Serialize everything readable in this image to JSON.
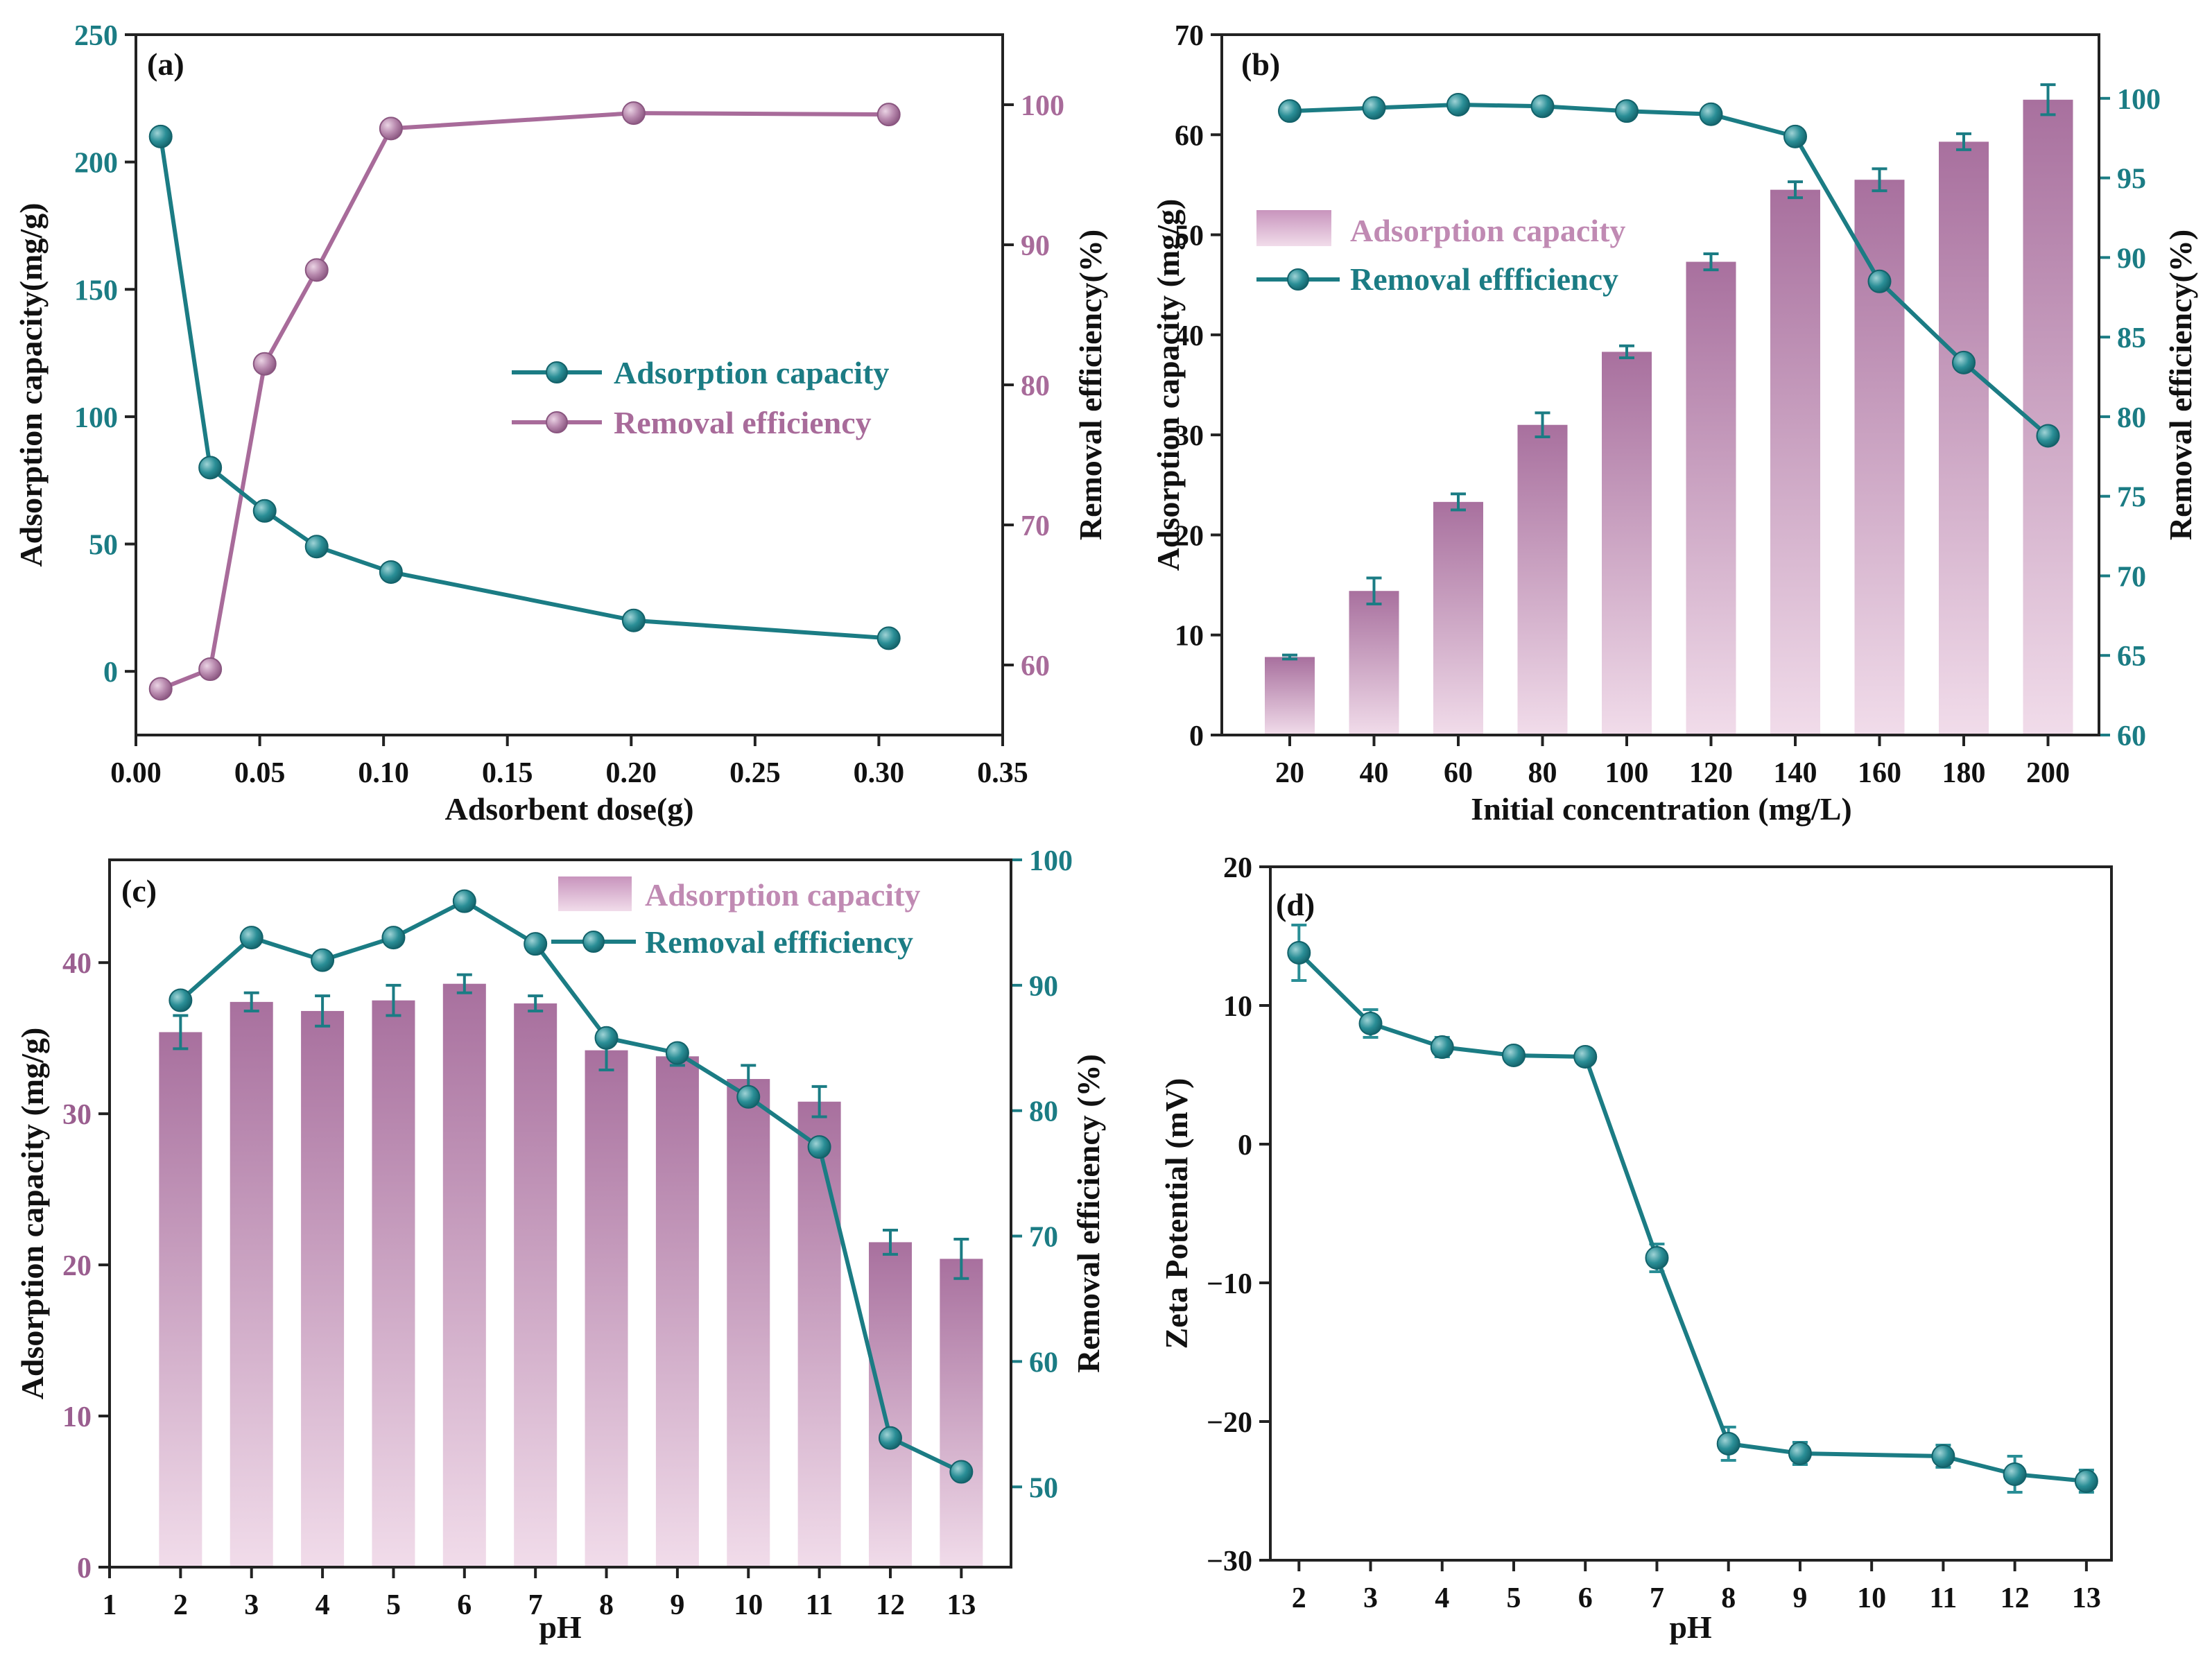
{
  "colors": {
    "teal": "#1b7c84",
    "teal_marker": "#2a8e96",
    "purple": "#a86b9a",
    "purple_marker": "#b687ac",
    "bar_top": "#a8709e",
    "bar_bottom": "#f1dcea",
    "axis": "#222222"
  },
  "chart_data": [
    {
      "panel": "a",
      "panel_label": "(a)",
      "type": "line",
      "xlabel": "Adsorbent dose(g)",
      "ylabel_left": "Adsorption capacity(mg/g)",
      "ylabel_right": "Removal efficiency(%)",
      "xlim": [
        0.0,
        0.35
      ],
      "xticks": [
        0.0,
        0.05,
        0.1,
        0.15,
        0.2,
        0.25,
        0.3,
        0.35
      ],
      "xtick_labels": [
        "0.00",
        "0.05",
        "0.10",
        "0.15",
        "0.20",
        "0.25",
        "0.30",
        "0.35"
      ],
      "ylim_left": [
        -25,
        250
      ],
      "yticks_left": [
        0,
        50,
        100,
        150,
        200,
        250
      ],
      "ytick_labels_left": [
        "0",
        "50",
        "100",
        "150",
        "200",
        "250"
      ],
      "ylim_right": [
        55,
        105
      ],
      "yticks_right": [
        60,
        70,
        80,
        90,
        100
      ],
      "ytick_labels_right": [
        "60",
        "70",
        "80",
        "90",
        "100"
      ],
      "legend_position": "center-right",
      "series": [
        {
          "name": "Adsorption capacity",
          "axis": "left",
          "color": "#1b7c84",
          "x": [
            0.01,
            0.03,
            0.052,
            0.073,
            0.103,
            0.201,
            0.304
          ],
          "values": [
            210,
            80,
            63,
            49,
            39,
            20,
            13
          ]
        },
        {
          "name": "Removal efficiency",
          "axis": "right",
          "color": "#a86b9a",
          "x": [
            0.01,
            0.03,
            0.052,
            0.073,
            0.103,
            0.201,
            0.304
          ],
          "values": [
            58.3,
            59.7,
            81.5,
            88.2,
            98.3,
            99.4,
            99.3
          ]
        }
      ]
    },
    {
      "panel": "b",
      "panel_label": "(b)",
      "type": "bar+line",
      "xlabel": "Initial concentration (mg/L)",
      "ylabel_left": "Adsorption capacity (mg/g)",
      "ylabel_right": "Removal efficiency(%)",
      "categories": [
        "20",
        "40",
        "60",
        "80",
        "100",
        "120",
        "140",
        "160",
        "180",
        "200"
      ],
      "ylim_left": [
        0,
        70
      ],
      "yticks_left": [
        0,
        10,
        20,
        30,
        40,
        50,
        60,
        70
      ],
      "ytick_labels_left": [
        "0",
        "10",
        "20",
        "30",
        "40",
        "50",
        "60",
        "70"
      ],
      "ylim_right": [
        60,
        104
      ],
      "yticks_right": [
        60,
        65,
        70,
        75,
        80,
        85,
        90,
        95,
        100
      ],
      "ytick_labels_right": [
        "60",
        "65",
        "70",
        "75",
        "80",
        "85",
        "90",
        "95",
        "100"
      ],
      "legend_position": "center-left",
      "series": [
        {
          "name": "Adsorption capacity",
          "kind": "bar",
          "axis": "left",
          "values": [
            7.8,
            14.4,
            23.3,
            31.0,
            38.3,
            47.3,
            54.5,
            55.5,
            59.3,
            63.5
          ],
          "errors": [
            0.2,
            1.3,
            0.8,
            1.2,
            0.6,
            0.8,
            0.8,
            1.1,
            0.8,
            1.5
          ]
        },
        {
          "name": "Removal effficiency",
          "kind": "line",
          "axis": "right",
          "values": [
            99.2,
            99.4,
            99.6,
            99.5,
            99.2,
            99.0,
            97.6,
            88.5,
            83.4,
            78.8
          ]
        }
      ]
    },
    {
      "panel": "c",
      "panel_label": "(c)",
      "type": "bar+line",
      "xlabel": "pH",
      "ylabel_left": "Adsorption capacity (mg/g)",
      "ylabel_right": "Removal efficiency (%)",
      "xlim": [
        1,
        13.7
      ],
      "xticks": [
        1,
        2,
        3,
        4,
        5,
        6,
        7,
        8,
        9,
        10,
        11,
        12,
        13
      ],
      "xtick_labels": [
        "1",
        "2",
        "3",
        "4",
        "5",
        "6",
        "7",
        "8",
        "9",
        "10",
        "11",
        "12",
        "13"
      ],
      "ylim_left": [
        0,
        46.8
      ],
      "yticks_left": [
        0,
        10,
        20,
        30,
        40
      ],
      "ytick_labels_left": [
        "0",
        "10",
        "20",
        "30",
        "40"
      ],
      "ylim_right": [
        43.6,
        100
      ],
      "yticks_right": [
        50,
        60,
        70,
        80,
        90,
        100
      ],
      "ytick_labels_right": [
        "50",
        "60",
        "70",
        "80",
        "90",
        "100"
      ],
      "legend_position": "top-right",
      "series": [
        {
          "name": "Adsorption capacity",
          "kind": "bar",
          "axis": "left",
          "x": [
            2,
            3,
            4,
            5,
            6,
            7,
            8,
            9,
            10,
            11,
            12,
            13
          ],
          "values": [
            35.4,
            37.4,
            36.8,
            37.5,
            38.6,
            37.3,
            34.2,
            33.8,
            32.3,
            30.8,
            21.5,
            20.4
          ],
          "errors": [
            1.1,
            0.6,
            1.0,
            1.0,
            0.6,
            0.5,
            1.3,
            0.6,
            0.9,
            1.0,
            0.8,
            1.3
          ]
        },
        {
          "name": "Removal effficiency",
          "kind": "line",
          "axis": "right",
          "x": [
            2,
            3,
            4,
            5,
            6,
            7,
            8,
            9,
            10,
            11,
            12,
            13
          ],
          "values": [
            88.8,
            93.8,
            92.0,
            93.8,
            96.7,
            93.3,
            85.8,
            84.6,
            81.1,
            77.1,
            53.9,
            51.2
          ]
        }
      ]
    },
    {
      "panel": "d",
      "panel_label": "(d)",
      "type": "line",
      "xlabel": "pH",
      "ylabel": "Zeta Potential (mV)",
      "xlim": [
        1.6,
        13.35
      ],
      "xticks": [
        2,
        3,
        4,
        5,
        6,
        7,
        8,
        9,
        10,
        11,
        12,
        13
      ],
      "xtick_labels": [
        "2",
        "3",
        "4",
        "5",
        "6",
        "7",
        "8",
        "9",
        "10",
        "11",
        "12",
        "13"
      ],
      "ylim": [
        -30,
        20
      ],
      "yticks": [
        -30,
        -20,
        -10,
        0,
        10,
        20
      ],
      "ytick_labels": [
        "−30",
        "−20",
        "−10",
        "0",
        "10",
        "20"
      ],
      "series": [
        {
          "name": "Zeta potential",
          "x": [
            2,
            3,
            4,
            5,
            6,
            7,
            8,
            9,
            11,
            12,
            13
          ],
          "values": [
            13.8,
            8.7,
            7.0,
            6.4,
            6.3,
            -8.2,
            -21.6,
            -22.3,
            -22.5,
            -23.8,
            -24.3
          ],
          "errors": [
            2.0,
            1.0,
            0.7,
            0.4,
            0.5,
            1.0,
            1.2,
            0.8,
            0.8,
            1.3,
            0.8
          ]
        }
      ]
    }
  ]
}
